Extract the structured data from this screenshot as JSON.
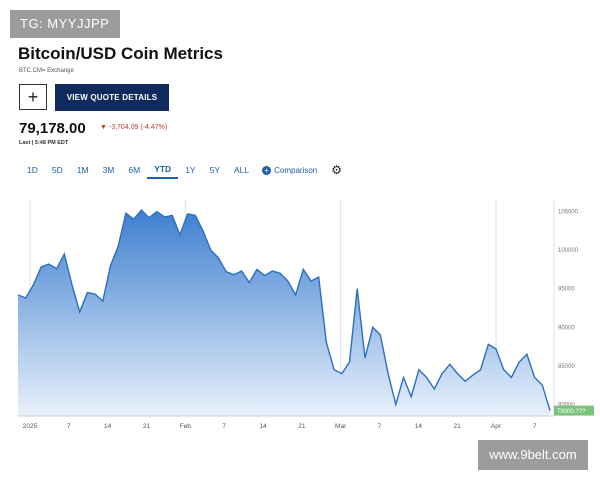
{
  "watermark_top": "TG: MYYJJPP",
  "watermark_bottom": "www.9belt.com",
  "header": {
    "title": "Bitcoin/USD Coin Metrics",
    "subtitle": "BTC.CM= Exchange",
    "add_label": "+",
    "quote_button": "VIEW QUOTE DETAILS",
    "price": "79,178.00",
    "change": "▼ -3,704.09 (-4.47%)",
    "last": "Last | 5:48 PM EDT"
  },
  "ranges": [
    "1D",
    "5D",
    "1M",
    "3M",
    "6M",
    "YTD",
    "1Y",
    "5Y",
    "ALL"
  ],
  "active_range": "YTD",
  "comparison_label": "Comparison",
  "colors": {
    "line": "#2c6fbf",
    "fill_top": "#3f7fd0",
    "fill_bottom": "#e8f1fb",
    "down": "#c0392b",
    "last_label": "#7cc47c"
  },
  "chart_data": {
    "type": "area",
    "x_tick_labels": [
      "2025",
      "7",
      "14",
      "21",
      "Feb",
      "7",
      "14",
      "21",
      "Mar",
      "7",
      "14",
      "21",
      "Apr",
      "7"
    ],
    "y_tick_labels": [
      "80000",
      "85000",
      "90000",
      "95000",
      "100000",
      "105000"
    ],
    "ylim": [
      78500,
      106500
    ],
    "last_value_label": "79000.???",
    "values": [
      94200,
      93800,
      95500,
      97800,
      98200,
      97600,
      99500,
      95500,
      92000,
      94500,
      94300,
      93400,
      98000,
      100500,
      104800,
      104000,
      105200,
      104200,
      105000,
      104300,
      104500,
      102000,
      104700,
      104500,
      102500,
      100000,
      99000,
      97200,
      96800,
      97300,
      95800,
      97500,
      96700,
      97300,
      97000,
      96000,
      94200,
      97500,
      96000,
      96500,
      88000,
      84500,
      84000,
      85500,
      95000,
      86000,
      90000,
      89000,
      84000,
      80000,
      83500,
      81000,
      84500,
      83500,
      82000,
      84000,
      85200,
      84000,
      83000,
      83800,
      84500,
      87800,
      87200,
      84500,
      83500,
      85500,
      86500,
      83500,
      82500,
      79200
    ],
    "grid": true
  }
}
